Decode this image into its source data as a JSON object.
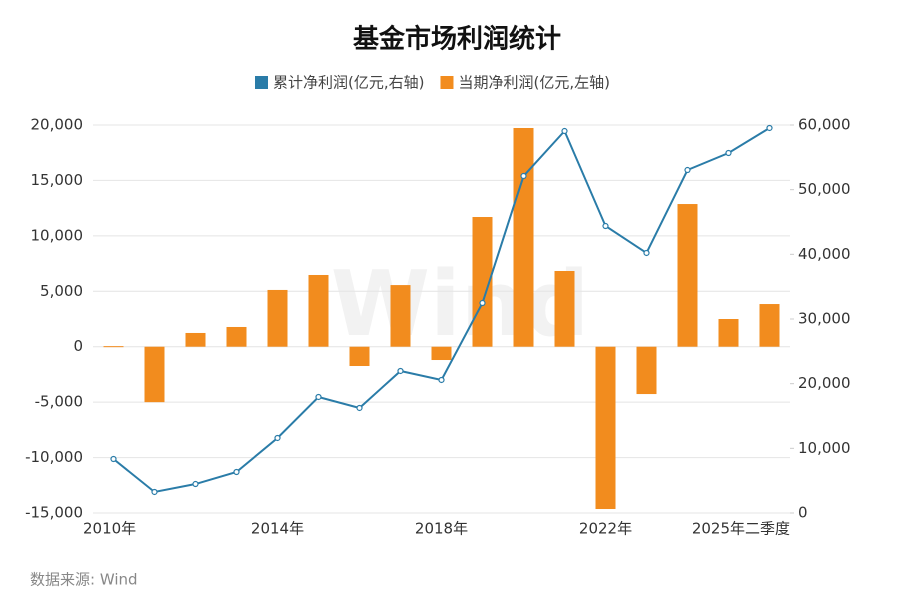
{
  "chart_data": {
    "type": "bar",
    "title": "基金市场利润统计",
    "categories": [
      "2010年",
      null,
      null,
      null,
      "2014年",
      null,
      null,
      null,
      "2018年",
      null,
      null,
      null,
      "2022年",
      null,
      null,
      null,
      "2025年二季度"
    ],
    "series": [
      {
        "name": "累计净利润(亿元,右轴)",
        "type": "line",
        "axis": "y2",
        "color": "#2a7ca8",
        "values": [
          8350,
          3250,
          4480,
          6340,
          11600,
          17940,
          16240,
          21960,
          20570,
          32470,
          52110,
          59070,
          44380,
          40210,
          53040,
          55670,
          59540
        ]
      },
      {
        "name": "当期净利润(亿元,左轴)",
        "type": "bar",
        "color": "#f28c1e",
        "values": [
          50,
          -5000,
          1240,
          1780,
          5120,
          6470,
          -1740,
          5560,
          -1200,
          11700,
          19730,
          6830,
          -14640,
          -4270,
          12870,
          2500,
          3850
        ]
      }
    ],
    "ylim": [
      -15000,
      20000
    ],
    "yticks": [
      {
        "value": -15000,
        "label": "-15,000"
      },
      {
        "value": -10000,
        "label": "-10,000"
      },
      {
        "value": -5000,
        "label": "-5,000"
      },
      0,
      {
        "value": 5000,
        "label": "5,000"
      },
      {
        "value": 10000,
        "label": "10,000"
      },
      {
        "value": 15000,
        "label": "15,000"
      },
      {
        "value": 20000,
        "label": "20,000"
      }
    ],
    "y2lim": [
      0,
      60000
    ],
    "y2ticks": [
      0,
      {
        "value": 10000,
        "label": "10,000"
      },
      {
        "value": 20000,
        "label": "20,000"
      },
      {
        "value": 30000,
        "label": "30,000"
      },
      {
        "value": 40000,
        "label": "40,000"
      },
      {
        "value": 50000,
        "label": "50,000"
      },
      {
        "value": 60000,
        "label": "60,000"
      }
    ],
    "grid": true,
    "source": "数据来源: Wind",
    "watermark": "Wind"
  }
}
